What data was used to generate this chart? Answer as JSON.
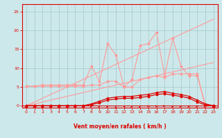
{
  "x": [
    0,
    1,
    2,
    3,
    4,
    5,
    6,
    7,
    8,
    9,
    10,
    11,
    12,
    13,
    14,
    15,
    16,
    17,
    18,
    19,
    20,
    21,
    22,
    23
  ],
  "diag_upper": [
    0,
    1,
    2,
    3,
    4,
    5,
    6,
    7,
    8,
    9,
    10,
    11,
    12,
    13,
    14,
    15,
    16,
    17,
    18,
    19,
    20,
    21,
    22,
    23
  ],
  "diag_lower": [
    0,
    0.5,
    1,
    1.5,
    2,
    2.5,
    3,
    3.5,
    4,
    4.5,
    5,
    5.5,
    6,
    6.5,
    7,
    7.5,
    8,
    8.5,
    9,
    9.5,
    10,
    10.5,
    11,
    11.5
  ],
  "gust_pink": [
    5.2,
    5.2,
    5.5,
    5.5,
    5.5,
    5.5,
    5.5,
    5.5,
    10.5,
    6.5,
    16.5,
    13.5,
    5.0,
    7.0,
    16.0,
    16.5,
    19.5,
    8.0,
    18.0,
    10.5,
    8.0,
    8.0,
    0.0,
    0.0
  ],
  "mean_pink": [
    5.2,
    5.2,
    5.2,
    5.2,
    5.2,
    5.2,
    5.2,
    5.2,
    5.5,
    5.5,
    6.5,
    6.5,
    5.0,
    5.0,
    7.0,
    7.5,
    8.0,
    7.5,
    8.5,
    8.5,
    8.5,
    8.5,
    0.0,
    0.0
  ],
  "freq_dark": [
    0,
    0,
    0,
    0,
    0,
    0,
    0,
    0,
    0.3,
    0.8,
    1.5,
    1.8,
    2.0,
    2.0,
    2.2,
    2.5,
    3.0,
    3.2,
    2.8,
    2.5,
    2.0,
    1.0,
    0.2,
    0
  ],
  "gust_dark": [
    0,
    0,
    0,
    0,
    0,
    0,
    0,
    0,
    0.5,
    1.2,
    2.0,
    2.3,
    2.5,
    2.5,
    2.8,
    3.0,
    3.5,
    3.8,
    3.3,
    3.0,
    2.5,
    1.5,
    0.5,
    0
  ],
  "bg_color": "#cde8ea",
  "grid_color": "#a0c8cc",
  "line_dark": "#dd0000",
  "line_light": "#ff9999",
  "xlabel": "Vent moyen/en rafales ( km/h )",
  "ylim": [
    -0.5,
    27
  ],
  "xlim": [
    -0.5,
    23.5
  ],
  "yticks": [
    0,
    5,
    10,
    15,
    20,
    25
  ],
  "xticks": [
    0,
    1,
    2,
    3,
    4,
    5,
    6,
    7,
    8,
    9,
    10,
    11,
    12,
    13,
    14,
    15,
    16,
    17,
    18,
    19,
    20,
    21,
    22,
    23
  ]
}
